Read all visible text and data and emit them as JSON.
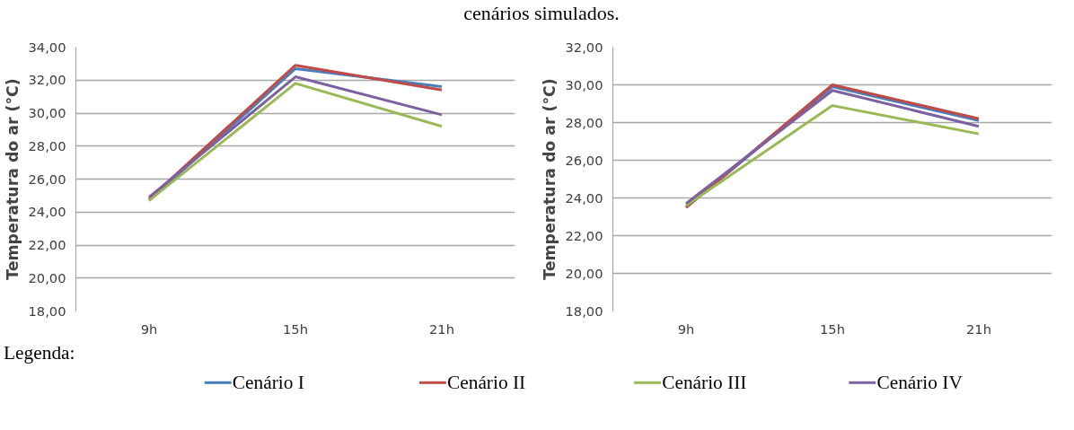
{
  "chart_data": [
    {
      "type": "line",
      "title": "cenários simulados.",
      "ylabel": "Temperatura do ar (°C)",
      "categories": [
        "9h",
        "15h",
        "21h"
      ],
      "ylim": [
        18,
        34
      ],
      "yticks": [
        {
          "value": 18,
          "label": "18,00"
        },
        {
          "value": 20,
          "label": "20,00"
        },
        {
          "value": 22,
          "label": "22,00"
        },
        {
          "value": 24,
          "label": "24,00"
        },
        {
          "value": 26,
          "label": "26,00"
        },
        {
          "value": 28,
          "label": "28,00"
        },
        {
          "value": 30,
          "label": "30,00"
        },
        {
          "value": 32,
          "label": "32,00"
        },
        {
          "value": 34,
          "label": "34,00"
        }
      ],
      "grid": "y",
      "legend": "bottom",
      "legend_title": "Legenda:",
      "marker": "none",
      "series": [
        {
          "name": "Cenário I",
          "color": "#4a7ebb",
          "values": [
            24.7,
            32.7,
            31.6
          ]
        },
        {
          "name": "Cenário II",
          "color": "#be4b48",
          "values": [
            24.8,
            32.9,
            31.4
          ]
        },
        {
          "name": "Cenário III",
          "color": "#98b954",
          "values": [
            24.7,
            31.8,
            29.2
          ]
        },
        {
          "name": "Cenário IV",
          "color": "#7d60a0",
          "values": [
            24.9,
            32.2,
            29.9
          ]
        }
      ]
    },
    {
      "type": "line",
      "ylabel": "Temperatura do ar (°C)",
      "categories": [
        "9h",
        "15h",
        "21h"
      ],
      "ylim": [
        18,
        32
      ],
      "yticks": [
        {
          "value": 18,
          "label": "18,00"
        },
        {
          "value": 20,
          "label": "20,00"
        },
        {
          "value": 22,
          "label": "22,00"
        },
        {
          "value": 24,
          "label": "24,00"
        },
        {
          "value": 26,
          "label": "26,00"
        },
        {
          "value": 28,
          "label": "28,00"
        },
        {
          "value": 30,
          "label": "30,00"
        },
        {
          "value": 32,
          "label": "32,00"
        }
      ],
      "grid": "y",
      "marker": "none",
      "series": [
        {
          "color": "#4a7ebb",
          "values": [
            23.5,
            29.9,
            28.1
          ]
        },
        {
          "color": "#be4b48",
          "values": [
            23.5,
            30.0,
            28.2
          ]
        },
        {
          "color": "#98b954",
          "values": [
            23.6,
            28.9,
            27.4
          ]
        },
        {
          "color": "#7d60a0",
          "values": [
            23.7,
            29.7,
            27.8
          ]
        }
      ]
    }
  ]
}
